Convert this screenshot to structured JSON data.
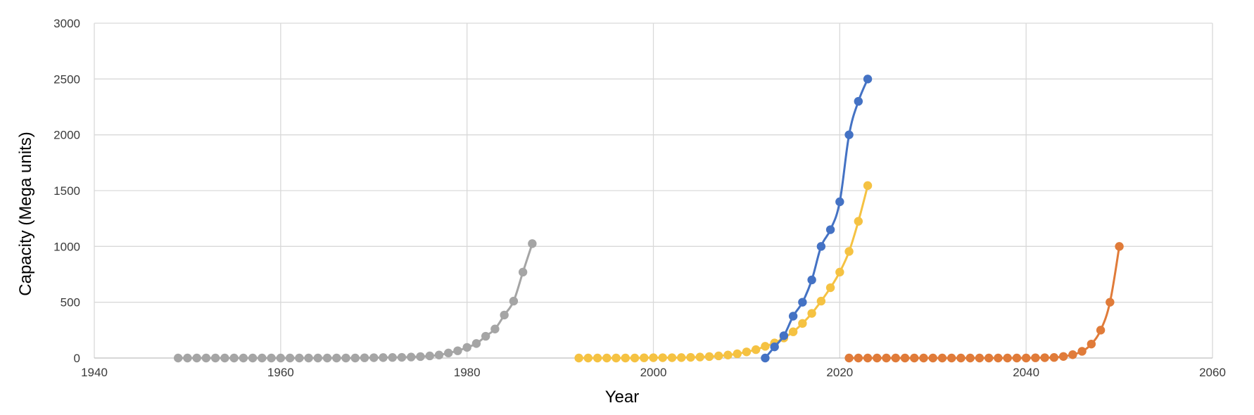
{
  "chart_data": {
    "type": "scatter",
    "title": "",
    "xlabel": "Year",
    "ylabel": "Capacity (Mega units)",
    "xlim": [
      1940,
      2060
    ],
    "ylim": [
      0,
      3000
    ],
    "xticks": [
      "1940",
      "1960",
      "1980",
      "2000",
      "2020",
      "2040",
      "2060"
    ],
    "yticks": [
      "0",
      "500",
      "1000",
      "1500",
      "2000",
      "2500",
      "3000"
    ],
    "grid": true,
    "legend": "none",
    "series": [
      {
        "color": "#a5a5a5",
        "points": [
          [
            1949,
            0
          ],
          [
            1950,
            0
          ],
          [
            1951,
            0
          ],
          [
            1952,
            0
          ],
          [
            1953,
            0
          ],
          [
            1954,
            0
          ],
          [
            1955,
            0
          ],
          [
            1956,
            0
          ],
          [
            1957,
            0
          ],
          [
            1958,
            0
          ],
          [
            1959,
            0
          ],
          [
            1960,
            0
          ],
          [
            1961,
            0
          ],
          [
            1962,
            0
          ],
          [
            1963,
            0
          ],
          [
            1964,
            0
          ],
          [
            1965,
            0
          ],
          [
            1966,
            0
          ],
          [
            1967,
            0
          ],
          [
            1968,
            0
          ],
          [
            1969,
            2
          ],
          [
            1970,
            3
          ],
          [
            1971,
            4
          ],
          [
            1972,
            5
          ],
          [
            1973,
            6
          ],
          [
            1974,
            9
          ],
          [
            1975,
            13
          ],
          [
            1976,
            19
          ],
          [
            1977,
            27
          ],
          [
            1978,
            45
          ],
          [
            1979,
            65
          ],
          [
            1980,
            95
          ],
          [
            1981,
            130
          ],
          [
            1982,
            195
          ],
          [
            1983,
            260
          ],
          [
            1984,
            385
          ],
          [
            1985,
            510
          ],
          [
            1986,
            770
          ],
          [
            1987,
            1025
          ]
        ]
      },
      {
        "color": "#f5c242",
        "points": [
          [
            1992,
            0
          ],
          [
            1993,
            0
          ],
          [
            1994,
            0
          ],
          [
            1995,
            0
          ],
          [
            1996,
            0
          ],
          [
            1997,
            0
          ],
          [
            1998,
            0
          ],
          [
            1999,
            2
          ],
          [
            2000,
            3
          ],
          [
            2001,
            3
          ],
          [
            2002,
            3
          ],
          [
            2003,
            4
          ],
          [
            2004,
            6
          ],
          [
            2005,
            9
          ],
          [
            2006,
            13
          ],
          [
            2007,
            19
          ],
          [
            2008,
            27
          ],
          [
            2009,
            38
          ],
          [
            2010,
            55
          ],
          [
            2011,
            75
          ],
          [
            2012,
            105
          ],
          [
            2013,
            135
          ],
          [
            2014,
            180
          ],
          [
            2015,
            235
          ],
          [
            2016,
            310
          ],
          [
            2017,
            400
          ],
          [
            2018,
            510
          ],
          [
            2019,
            630
          ],
          [
            2020,
            770
          ],
          [
            2021,
            955
          ],
          [
            2022,
            1225
          ],
          [
            2023,
            1545
          ]
        ]
      },
      {
        "color": "#4472c4",
        "points": [
          [
            2012,
            0
          ],
          [
            2013,
            100
          ],
          [
            2014,
            200
          ],
          [
            2015,
            375
          ],
          [
            2016,
            500
          ],
          [
            2017,
            700
          ],
          [
            2018,
            1000
          ],
          [
            2019,
            1150
          ],
          [
            2020,
            1400
          ],
          [
            2021,
            2000
          ],
          [
            2022,
            2300
          ],
          [
            2023,
            2500
          ]
        ]
      },
      {
        "color": "#e07b39",
        "points": [
          [
            2021,
            0
          ],
          [
            2022,
            0
          ],
          [
            2023,
            0
          ],
          [
            2024,
            0
          ],
          [
            2025,
            0
          ],
          [
            2026,
            0
          ],
          [
            2027,
            0
          ],
          [
            2028,
            0
          ],
          [
            2029,
            0
          ],
          [
            2030,
            0
          ],
          [
            2031,
            0
          ],
          [
            2032,
            0
          ],
          [
            2033,
            0
          ],
          [
            2034,
            0
          ],
          [
            2035,
            0
          ],
          [
            2036,
            0
          ],
          [
            2037,
            0
          ],
          [
            2038,
            0
          ],
          [
            2039,
            0
          ],
          [
            2040,
            0
          ],
          [
            2041,
            2
          ],
          [
            2042,
            3
          ],
          [
            2043,
            5
          ],
          [
            2044,
            14
          ],
          [
            2045,
            30
          ],
          [
            2046,
            60
          ],
          [
            2047,
            125
          ],
          [
            2048,
            250
          ],
          [
            2049,
            500
          ],
          [
            2050,
            1000
          ]
        ]
      }
    ]
  }
}
